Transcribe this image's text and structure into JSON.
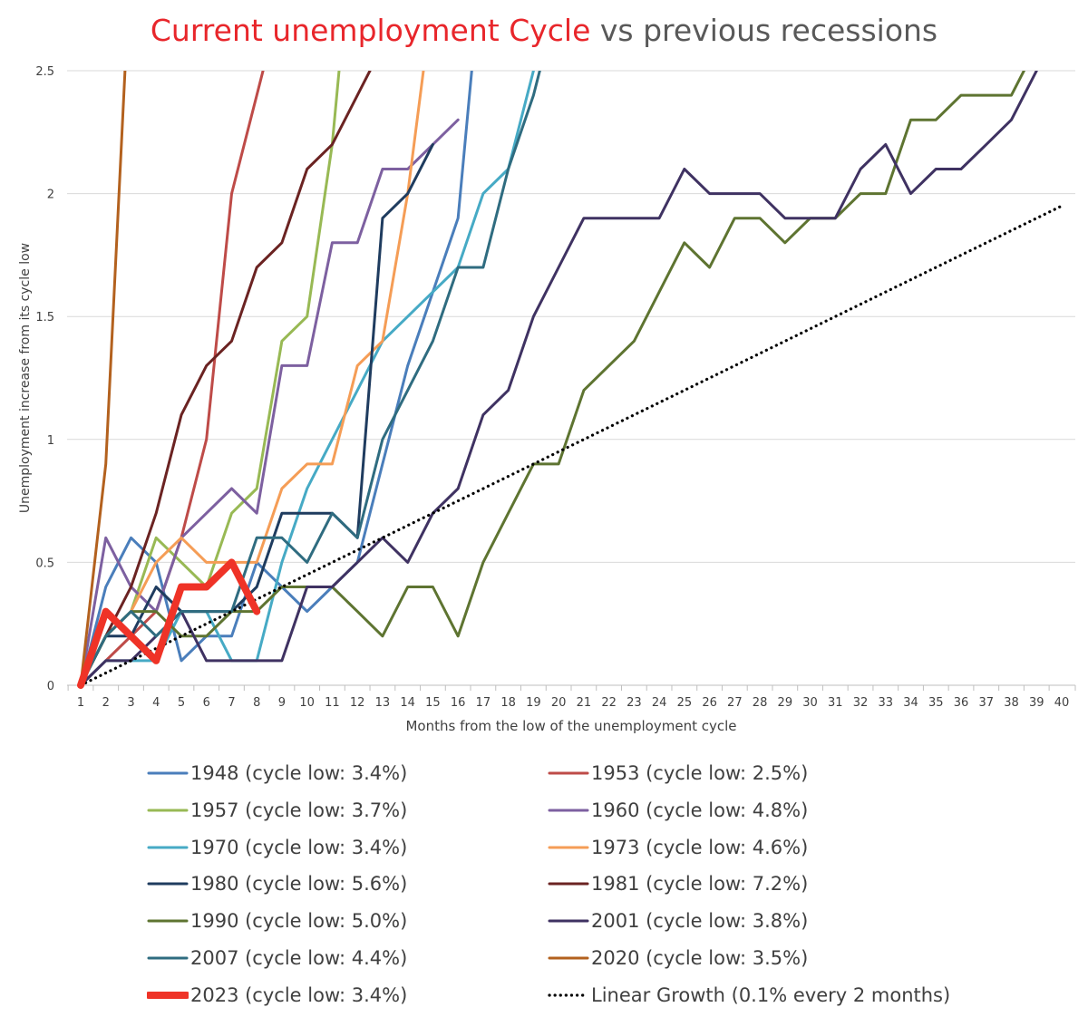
{
  "title": {
    "part1": "Current unemployment Cycle",
    "part2": " vs previous recessions",
    "part1_color": "#e8262b",
    "part2_color": "#595959"
  },
  "chart_data": {
    "type": "line",
    "title": "Current unemployment Cycle vs previous recessions",
    "xlabel": "Months from the low of  the unemployment cycle",
    "ylabel": "Unemployment increase from its cycle low",
    "xlim": [
      1,
      40
    ],
    "ylim": [
      0,
      2.5
    ],
    "x_ticks": [
      "1",
      "2",
      "3",
      "4",
      "5",
      "6",
      "7",
      "8",
      "9",
      "10",
      "11",
      "12",
      "13",
      "14",
      "15",
      "16",
      "17",
      "18",
      "19",
      "20",
      "21",
      "22",
      "23",
      "24",
      "25",
      "26",
      "27",
      "28",
      "29",
      "30",
      "31",
      "32",
      "33",
      "34",
      "35",
      "36",
      "37",
      "38",
      "39",
      "40"
    ],
    "y_ticks": [
      {
        "value": 0,
        "label": "0"
      },
      {
        "value": 0.5,
        "label": "0.5"
      },
      {
        "value": 1,
        "label": "1"
      },
      {
        "value": 1.5,
        "label": "1.5"
      },
      {
        "value": 2,
        "label": "2"
      },
      {
        "value": 2.5,
        "label": "2.5"
      }
    ],
    "grid": true,
    "series": [
      {
        "name": "1948 (cycle low: 3.4%)",
        "color": "#4a7ebb",
        "width": 3,
        "style": "solid",
        "values": [
          0,
          0.4,
          0.6,
          0.5,
          0.1,
          0.2,
          0.2,
          0.5,
          0.4,
          0.3,
          0.4,
          0.5,
          0.9,
          1.3,
          1.6,
          1.9,
          3.0
        ]
      },
      {
        "name": "1953 (cycle low: 2.5%)",
        "color": "#be4b48",
        "width": 3,
        "style": "solid",
        "values": [
          0,
          0.1,
          0.2,
          0.3,
          0.6,
          1.0,
          2.0,
          2.4,
          2.8
        ]
      },
      {
        "name": "1957 (cycle low: 3.7%)",
        "color": "#98b954",
        "width": 3,
        "style": "solid",
        "values": [
          0,
          0.2,
          0.3,
          0.6,
          0.5,
          0.4,
          0.7,
          0.8,
          1.4,
          1.5,
          2.2,
          3.3
        ]
      },
      {
        "name": "1960 (cycle low: 4.8%)",
        "color": "#7d60a0",
        "width": 3,
        "style": "solid",
        "values": [
          0,
          0.6,
          0.4,
          0.3,
          0.6,
          0.7,
          0.8,
          0.7,
          1.3,
          1.3,
          1.8,
          1.8,
          2.1,
          2.1,
          2.2,
          2.3
        ]
      },
      {
        "name": "1970 (cycle low: 3.4%)",
        "color": "#46aac5",
        "width": 3,
        "style": "solid",
        "values": [
          0,
          0.1,
          0.1,
          0.1,
          0.3,
          0.3,
          0.1,
          0.1,
          0.5,
          0.8,
          1.0,
          1.2,
          1.4,
          1.5,
          1.6,
          1.7,
          2.0,
          2.1,
          2.5,
          2.8
        ]
      },
      {
        "name": "1973 (cycle low: 4.6%)",
        "color": "#f59d56",
        "width": 3,
        "style": "solid",
        "values": [
          0,
          0.2,
          0.3,
          0.5,
          0.6,
          0.5,
          0.5,
          0.5,
          0.8,
          0.9,
          0.9,
          1.3,
          1.4,
          2.0,
          2.8
        ]
      },
      {
        "name": "1980 (cycle low: 5.6%)",
        "color": "#1f3c5f",
        "width": 3,
        "style": "solid",
        "values": [
          0,
          0.2,
          0.2,
          0.4,
          0.3,
          0.3,
          0.3,
          0.4,
          0.7,
          0.7,
          0.7,
          0.6,
          1.9,
          2.0,
          2.2
        ]
      },
      {
        "name": "1981 (cycle low: 7.2%)",
        "color": "#6b2322",
        "width": 3,
        "style": "solid",
        "values": [
          0,
          0.2,
          0.4,
          0.7,
          1.1,
          1.3,
          1.4,
          1.7,
          1.8,
          2.1,
          2.2,
          2.4,
          2.6
        ]
      },
      {
        "name": "1990 (cycle low: 5.0%)",
        "color": "#5e7431",
        "width": 3,
        "style": "solid",
        "values": [
          0,
          0.2,
          0.3,
          0.3,
          0.2,
          0.2,
          0.3,
          0.3,
          0.4,
          0.4,
          0.4,
          0.3,
          0.2,
          0.4,
          0.4,
          0.2,
          0.5,
          0.7,
          0.9,
          0.9,
          1.2,
          1.3,
          1.4,
          1.6,
          1.8,
          1.7,
          1.9,
          1.9,
          1.8,
          1.9,
          1.9,
          2.0,
          2.0,
          2.3,
          2.3,
          2.4,
          2.4,
          2.4,
          2.6
        ]
      },
      {
        "name": "2001 (cycle low: 3.8%)",
        "color": "#3f3262",
        "width": 3,
        "style": "solid",
        "values": [
          0,
          0.1,
          0.1,
          0.2,
          0.3,
          0.1,
          0.1,
          0.1,
          0.1,
          0.4,
          0.4,
          0.5,
          0.6,
          0.5,
          0.7,
          0.8,
          1.1,
          1.2,
          1.5,
          1.7,
          1.9,
          1.9,
          1.9,
          1.9,
          2.1,
          2.0,
          2.0,
          2.0,
          1.9,
          1.9,
          1.9,
          2.1,
          2.2,
          2.0,
          2.1,
          2.1,
          2.2,
          2.3,
          2.5
        ]
      },
      {
        "name": "2007 (cycle low: 4.4%)",
        "color": "#2f6c80",
        "width": 3,
        "style": "solid",
        "values": [
          0,
          0.2,
          0.3,
          0.2,
          0.3,
          0.3,
          0.3,
          0.6,
          0.6,
          0.5,
          0.7,
          0.6,
          1.0,
          1.2,
          1.4,
          1.7,
          1.7,
          2.1,
          2.4,
          2.8
        ]
      },
      {
        "name": "2020 (cycle low: 3.5%)",
        "color": "#b3611e",
        "width": 3,
        "style": "solid",
        "values": [
          0,
          0.9,
          3.0
        ]
      },
      {
        "name": "2023 (cycle low: 3.4%)",
        "color": "#ef3327",
        "width": 8,
        "style": "solid",
        "values": [
          0,
          0.3,
          0.2,
          0.1,
          0.4,
          0.4,
          0.5,
          0.3
        ]
      },
      {
        "name": "Linear Growth (0.1% every 2 months)",
        "color": "#000000",
        "width": 3,
        "style": "dotted",
        "values": [
          0,
          1.95
        ],
        "x": [
          1,
          40
        ]
      }
    ]
  }
}
